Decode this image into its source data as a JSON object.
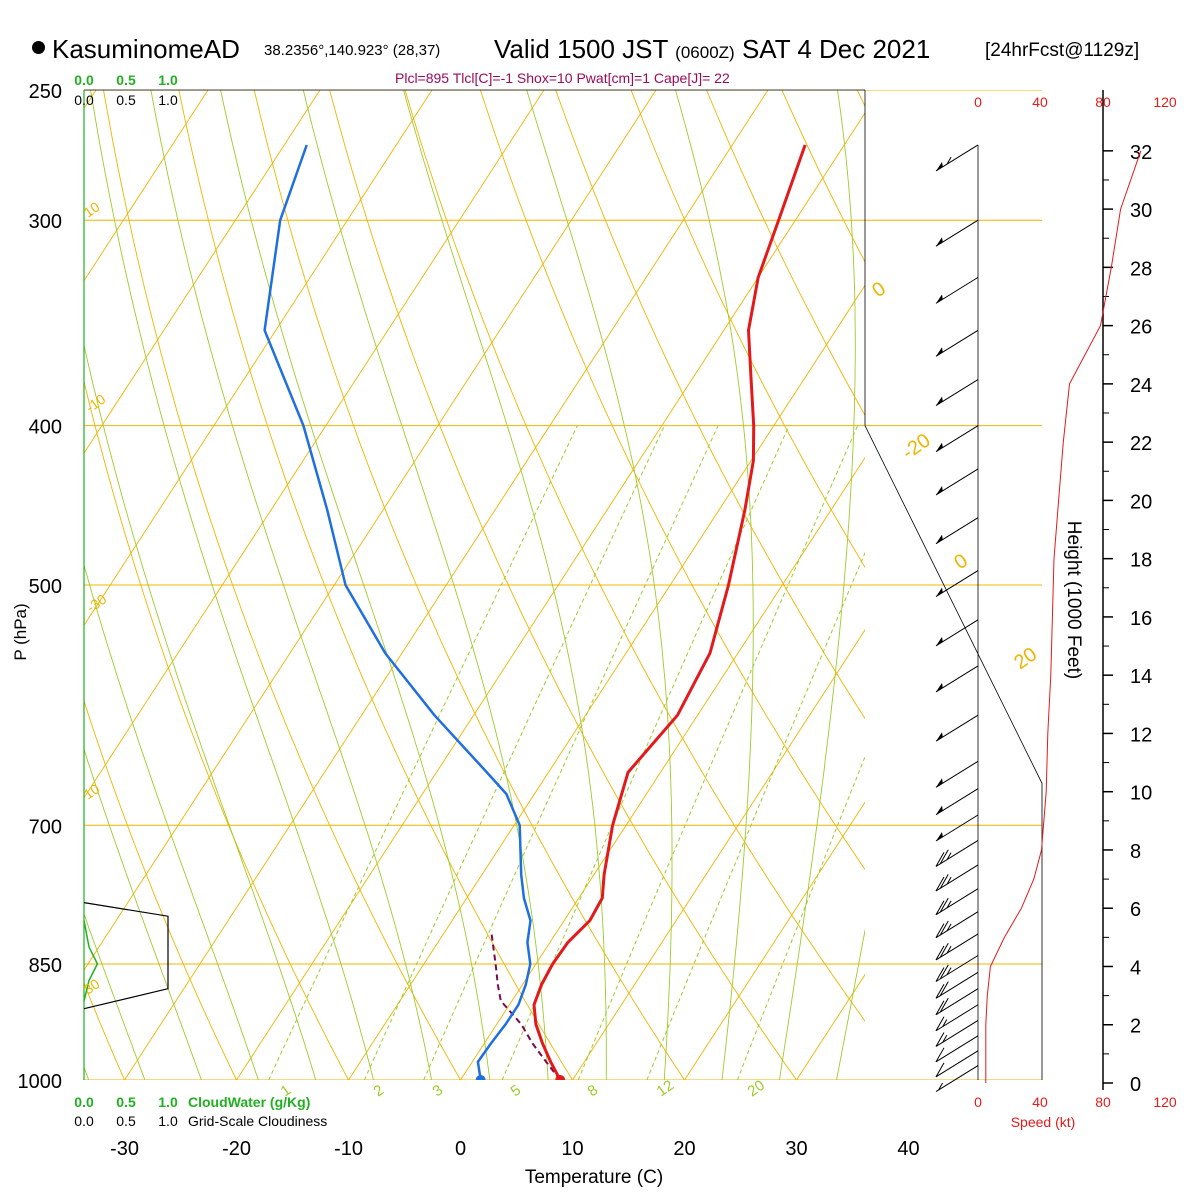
{
  "header": {
    "station_name": "KasuminomeAD",
    "coords": "38.2356°,140.923° (28,37)",
    "valid_label": "Valid 1500 JST",
    "utc": "(0600Z)",
    "date": "SAT 4 Dec 2021",
    "forecast": "[24hrFcst@1129z]",
    "indices": "Plcl=895 Tlcl[C]=-1 Shox=10 Pwat[cm]=1 Cape[J]= 22"
  },
  "colors": {
    "temperature": "#e31a1c",
    "dewpoint": "#1f6fe0",
    "isotherm": "#f0b400",
    "dry_adiabat": "#f0b400",
    "moist_adiabat": "#9ccc2a",
    "mixing_ratio": "#9ccc2a",
    "parcel": "#7a0a4a",
    "cloud_water": "#22b022",
    "indices_text": "#9c0a5a",
    "speed": "#e31a1c"
  },
  "chart_data": {
    "type": "skew-t log-p sounding",
    "title": "KasuminomeAD  Valid 1500 JST (0600Z) SAT 4 Dec 2021",
    "xlabel": "Temperature (C)",
    "ylabel": "P (hPa)",
    "y2label": "Height (1000 Feet)",
    "x_ticks": [
      "-30",
      "-20",
      "-10",
      "0",
      "10",
      "20",
      "30",
      "40"
    ],
    "y_ticks": [
      "250",
      "300",
      "400",
      "500",
      "700",
      "850",
      "1000"
    ],
    "xlim": [
      -35,
      36
    ],
    "ylim": [
      1000,
      250
    ],
    "log_pressure": true,
    "height_ticks": [
      "0",
      "2",
      "4",
      "6",
      "8",
      "10",
      "12",
      "14",
      "16",
      "18",
      "20",
      "22",
      "24",
      "26",
      "28",
      "30",
      "32"
    ],
    "cloud_scale_top": [
      "0.0",
      "0.5",
      "1.0"
    ],
    "grid_scale_top": [
      "0.0",
      "0.5",
      "1.0"
    ],
    "cloud_scale_bottom": [
      "0.0",
      "0.5",
      "1.0"
    ],
    "grid_scale_bottom": [
      "0.0",
      "0.5",
      "1.0"
    ],
    "cloud_water_label": "CloudWater (g/Kg)",
    "grid_cloud_label": "Grid-Scale Cloudiness",
    "speed_ticks": [
      "0",
      "40",
      "80",
      "120"
    ],
    "speed_label": "Speed (kt)",
    "mixing_ratio_labels": [
      "1",
      "2",
      "3",
      "5",
      "8",
      "12",
      "20"
    ],
    "dry_adiabat_labels": [
      "10",
      "0",
      "-10",
      "-20",
      "-30",
      "0",
      "10",
      "20",
      "30"
    ],
    "temperature": [
      {
        "p": 1000,
        "t": 8.9
      },
      {
        "p": 975,
        "t": 7.0
      },
      {
        "p": 950,
        "t": 5.2
      },
      {
        "p": 925,
        "t": 3.5
      },
      {
        "p": 900,
        "t": 2.2
      },
      {
        "p": 875,
        "t": 1.7
      },
      {
        "p": 850,
        "t": 1.5
      },
      {
        "p": 825,
        "t": 1.6
      },
      {
        "p": 800,
        "t": 2.3
      },
      {
        "p": 775,
        "t": 2.1
      },
      {
        "p": 750,
        "t": 0.9
      },
      {
        "p": 700,
        "t": -1.2
      },
      {
        "p": 650,
        "t": -2.9
      },
      {
        "p": 600,
        "t": -1.8
      },
      {
        "p": 550,
        "t": -2.5
      },
      {
        "p": 500,
        "t": -4.8
      },
      {
        "p": 450,
        "t": -7.7
      },
      {
        "p": 420,
        "t": -9.8
      },
      {
        "p": 400,
        "t": -11.8
      },
      {
        "p": 375,
        "t": -14.7
      },
      {
        "p": 350,
        "t": -17.8
      },
      {
        "p": 325,
        "t": -20.0
      },
      {
        "p": 300,
        "t": -21.5
      },
      {
        "p": 270,
        "t": -23.5
      }
    ],
    "dewpoint": [
      {
        "p": 1000,
        "t": 1.8
      },
      {
        "p": 975,
        "t": 0.5
      },
      {
        "p": 950,
        "t": 0.6
      },
      {
        "p": 925,
        "t": 0.8
      },
      {
        "p": 900,
        "t": 0.8
      },
      {
        "p": 875,
        "t": 0.3
      },
      {
        "p": 850,
        "t": -0.5
      },
      {
        "p": 825,
        "t": -2.0
      },
      {
        "p": 800,
        "t": -3.0
      },
      {
        "p": 775,
        "t": -4.9
      },
      {
        "p": 750,
        "t": -6.5
      },
      {
        "p": 700,
        "t": -9.5
      },
      {
        "p": 670,
        "t": -12.5
      },
      {
        "p": 650,
        "t": -15.5
      },
      {
        "p": 600,
        "t": -23.5
      },
      {
        "p": 550,
        "t": -31.5
      },
      {
        "p": 500,
        "t": -39.0
      },
      {
        "p": 450,
        "t": -45.0
      },
      {
        "p": 400,
        "t": -52.0
      },
      {
        "p": 350,
        "t": -61.0
      },
      {
        "p": 300,
        "t": -66.0
      },
      {
        "p": 270,
        "t": -68.0
      }
    ],
    "parcel": [
      {
        "p": 1000,
        "t": 8.9
      },
      {
        "p": 975,
        "t": 6.6
      },
      {
        "p": 950,
        "t": 4.3
      },
      {
        "p": 925,
        "t": 2.2
      },
      {
        "p": 895,
        "t": -1.0
      },
      {
        "p": 875,
        "t": -2.2
      },
      {
        "p": 850,
        "t": -3.6
      },
      {
        "p": 825,
        "t": -5.1
      },
      {
        "p": 815,
        "t": -5.7
      }
    ],
    "surface_temperature": 8.9,
    "surface_dewpoint": 1.8,
    "height_profile": [
      {
        "h": 0,
        "speed": 5
      },
      {
        "h": 1,
        "speed": 5
      },
      {
        "h": 2,
        "speed": 5
      },
      {
        "h": 3,
        "speed": 6
      },
      {
        "h": 4,
        "speed": 8
      },
      {
        "h": 5,
        "speed": 17
      },
      {
        "h": 6,
        "speed": 28
      },
      {
        "h": 7,
        "speed": 36
      },
      {
        "h": 8,
        "speed": 41
      },
      {
        "h": 10,
        "speed": 44
      },
      {
        "h": 12,
        "speed": 45
      },
      {
        "h": 14,
        "speed": 47
      },
      {
        "h": 16,
        "speed": 48
      },
      {
        "h": 18,
        "speed": 49
      },
      {
        "h": 20,
        "speed": 52
      },
      {
        "h": 22,
        "speed": 55
      },
      {
        "h": 24,
        "speed": 59
      },
      {
        "h": 26,
        "speed": 79
      },
      {
        "h": 28,
        "speed": 86
      },
      {
        "h": 30,
        "speed": 92
      },
      {
        "h": 32,
        "speed": 105
      }
    ],
    "cloud_water_profile": [
      {
        "p": 800,
        "v": 0.0
      },
      {
        "p": 830,
        "v": 0.03
      },
      {
        "p": 850,
        "v": 0.08
      },
      {
        "p": 870,
        "v": 0.03
      },
      {
        "p": 895,
        "v": 0.0
      }
    ],
    "grid_cloudiness_profile": [
      {
        "p": 780,
        "v": 0.0
      },
      {
        "p": 795,
        "v": 1.0
      },
      {
        "p": 880,
        "v": 1.0
      },
      {
        "p": 905,
        "v": 0.0
      }
    ],
    "winds": [
      {
        "p": 270,
        "barb": "50+5"
      },
      {
        "p": 300,
        "barb": "50"
      },
      {
        "p": 325,
        "barb": "50"
      },
      {
        "p": 350,
        "barb": "50"
      },
      {
        "p": 375,
        "barb": "50"
      },
      {
        "p": 400,
        "barb": "50"
      },
      {
        "p": 425,
        "barb": "50"
      },
      {
        "p": 455,
        "barb": "50"
      },
      {
        "p": 490,
        "barb": "50"
      },
      {
        "p": 525,
        "barb": "50"
      },
      {
        "p": 560,
        "barb": "50"
      },
      {
        "p": 600,
        "barb": "50"
      },
      {
        "p": 640,
        "barb": "50"
      },
      {
        "p": 665,
        "barb": "50"
      },
      {
        "p": 690,
        "barb": "50"
      },
      {
        "p": 715,
        "barb": "25"
      },
      {
        "p": 740,
        "barb": "25"
      },
      {
        "p": 765,
        "barb": "25"
      },
      {
        "p": 790,
        "barb": "25"
      },
      {
        "p": 815,
        "barb": "25"
      },
      {
        "p": 840,
        "barb": "25"
      },
      {
        "p": 860,
        "barb": "20"
      },
      {
        "p": 880,
        "barb": "20"
      },
      {
        "p": 900,
        "barb": "15"
      },
      {
        "p": 920,
        "barb": "15"
      },
      {
        "p": 940,
        "barb": "10"
      },
      {
        "p": 960,
        "barb": "10"
      },
      {
        "p": 980,
        "barb": "5"
      }
    ]
  }
}
